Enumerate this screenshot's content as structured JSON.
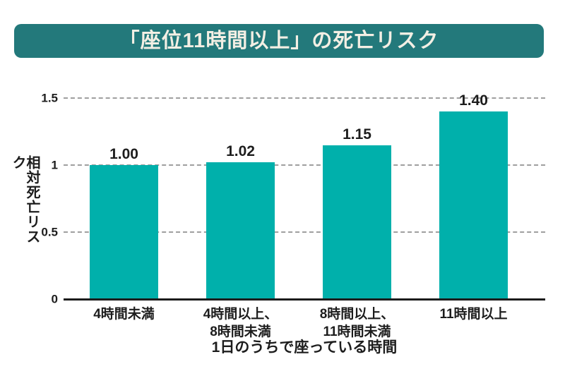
{
  "banner": {
    "title": "「座位11時間以上」の死亡リスク",
    "bg_color": "#23797b",
    "text_color": "#f3efe4"
  },
  "colors": {
    "bar": "#00b0ab",
    "gridline": "#9f9f9f",
    "axis": "#1c1c1c",
    "text": "#1d1d1d"
  },
  "chart_data": {
    "type": "bar",
    "title": "「座位11時間以上」の死亡リスク",
    "categories": [
      "4時間未満",
      "4時間以上、\n8時間未満",
      "8時間以上、\n11時間未満",
      "11時間以上"
    ],
    "values": [
      1.0,
      1.02,
      1.15,
      1.4
    ],
    "value_labels": [
      "1.00",
      "1.02",
      "1.15",
      "1.40"
    ],
    "ylabel": "相対死亡リスク",
    "xlabel": "1日のうちで座っている時間",
    "yticks": [
      0,
      0.5,
      1,
      1.5
    ],
    "ytick_labels": [
      "0",
      "0.5",
      "1",
      "1.5"
    ],
    "ylim": [
      0,
      1.5
    ],
    "grid": "horizontal dashed, at 0.5 / 1 / 1.5; solid baseline at 0",
    "legend": "none",
    "bar_color": "#00b0ab"
  }
}
